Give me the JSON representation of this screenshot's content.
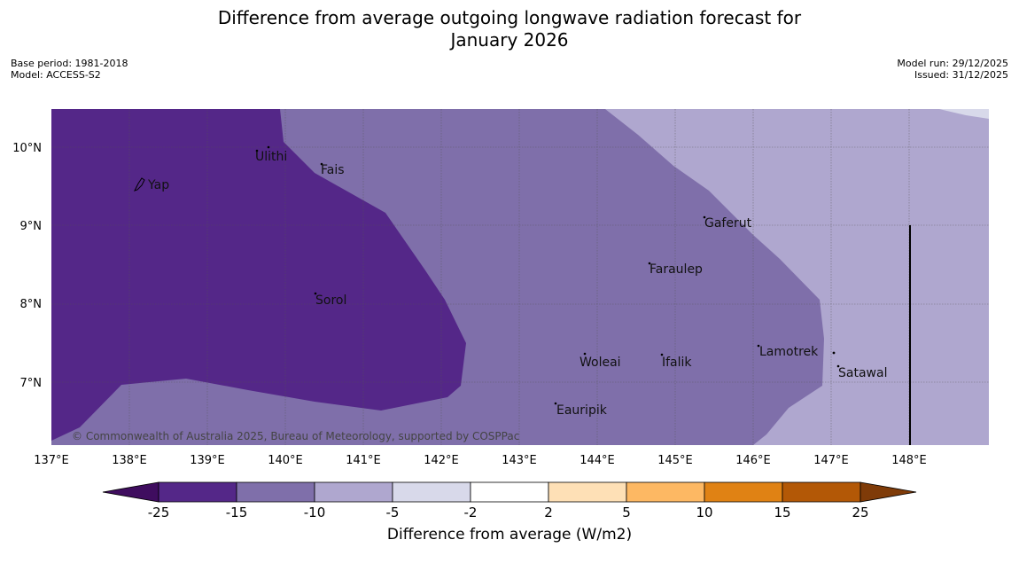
{
  "title": {
    "line1": "Difference from average outgoing longwave radiation forecast for",
    "line2": "January 2026"
  },
  "meta_left": {
    "base_period": "Base period: 1981-2018",
    "model": "Model: ACCESS-S2"
  },
  "meta_right": {
    "model_run": "Model run: 29/12/2025",
    "issued": "Issued: 31/12/2025"
  },
  "map": {
    "lon_labels": [
      "137°E",
      "138°E",
      "139°E",
      "140°E",
      "141°E",
      "142°E",
      "143°E",
      "144°E",
      "145°E",
      "146°E",
      "147°E",
      "148°E"
    ],
    "lat_labels": [
      "10°N",
      "9°N",
      "8°N",
      "7°N"
    ],
    "places": [
      "Ulithi",
      "Fais",
      "Yap",
      "Gaferut",
      "Faraulep",
      "Sorol",
      "Lamotrek",
      "Woleai",
      "Ifalik",
      "Satawal",
      "Eauripik"
    ],
    "copyright": "© Commonwealth of Australia 2025, Bureau of Meteorology, supported by COSPPac"
  },
  "legend": {
    "ticks": [
      "-25",
      "-15",
      "-10",
      "-5",
      "-2",
      "2",
      "5",
      "10",
      "15",
      "25"
    ],
    "label": "Difference from average (W/m2)",
    "colors": [
      "#3f0d5f",
      "#542788",
      "#7f6faa",
      "#afa7cf",
      "#d8d9ea",
      "#ffffff",
      "#fee0b6",
      "#fdb863",
      "#e08214",
      "#b35806",
      "#7f3b08"
    ]
  }
}
